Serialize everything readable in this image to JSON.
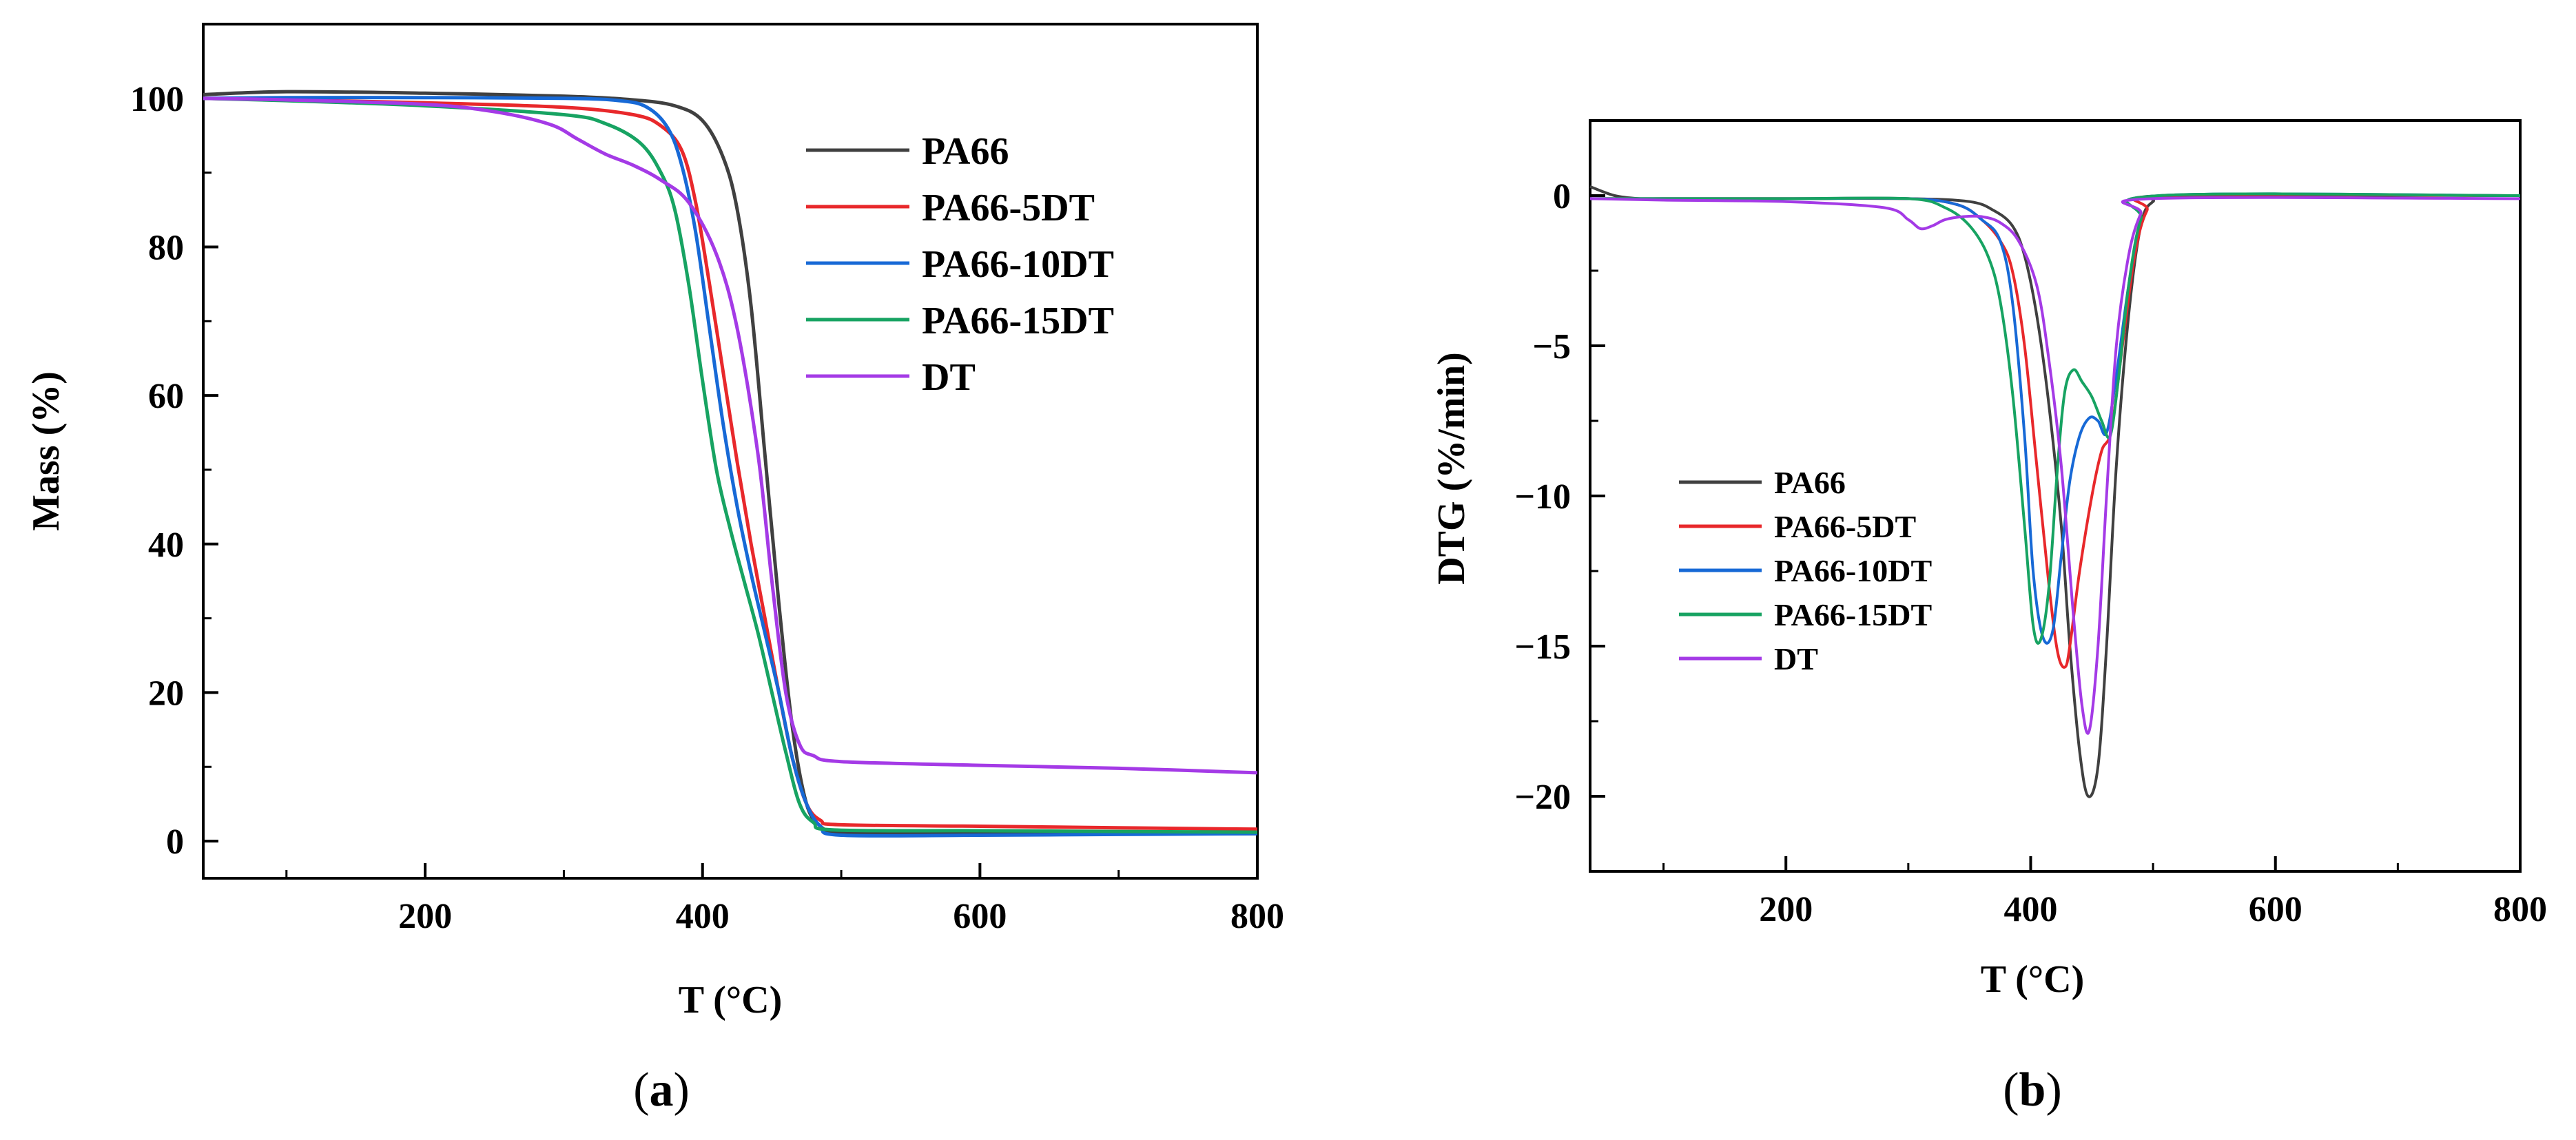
{
  "chart_data": [
    {
      "id": "a",
      "type": "line",
      "panel_label": {
        "open": "(",
        "letter": "a",
        "close": ")"
      },
      "xlabel": "T (°C)",
      "ylabel": "Mass (%)",
      "xlim": [
        40,
        800
      ],
      "ylim": [
        -5,
        110
      ],
      "xticks": [
        200,
        400,
        600,
        800
      ],
      "yticks": [
        0,
        20,
        40,
        60,
        80,
        100
      ],
      "legend_position": "top-right",
      "series": [
        {
          "name": "PA66",
          "color": "#404040",
          "x": [
            40,
            100,
            200,
            300,
            350,
            380,
            400,
            415,
            425,
            435,
            445,
            455,
            465,
            475,
            485,
            495,
            510,
            600,
            700,
            800
          ],
          "y": [
            100.5,
            100.9,
            100.7,
            100.3,
            99.8,
            99.0,
            97.0,
            92.0,
            85.0,
            72.0,
            52.0,
            32.0,
            15.0,
            5.0,
            2.0,
            1.2,
            1.0,
            1.0,
            1.0,
            1.0
          ]
        },
        {
          "name": "PA66-5DT",
          "color": "#e8282b",
          "x": [
            40,
            100,
            200,
            300,
            350,
            370,
            385,
            395,
            405,
            415,
            425,
            435,
            445,
            455,
            465,
            475,
            485,
            500,
            600,
            700,
            800
          ],
          "y": [
            100,
            99.8,
            99.4,
            98.8,
            97.8,
            96.3,
            93.0,
            86.0,
            75.0,
            63.0,
            51.0,
            40.0,
            30.0,
            20.0,
            11.0,
            5.0,
            2.8,
            2.2,
            2.0,
            1.8,
            1.6
          ]
        },
        {
          "name": "PA66-10DT",
          "color": "#1769d6",
          "x": [
            40,
            100,
            200,
            300,
            340,
            360,
            375,
            385,
            395,
            405,
            415,
            425,
            435,
            445,
            455,
            465,
            475,
            485,
            500,
            600,
            700,
            800
          ],
          "y": [
            100,
            100.1,
            100.1,
            100.0,
            99.7,
            98.8,
            96.0,
            91.0,
            82.0,
            69.0,
            56.0,
            45.0,
            36.0,
            28.0,
            20.0,
            11.0,
            5.0,
            2.0,
            0.8,
            0.8,
            0.9,
            1.0
          ]
        },
        {
          "name": "PA66-15DT",
          "color": "#17a362",
          "x": [
            40,
            100,
            200,
            300,
            330,
            355,
            370,
            380,
            390,
            400,
            410,
            420,
            430,
            440,
            450,
            460,
            470,
            480,
            495,
            600,
            700,
            800
          ],
          "y": [
            100,
            99.7,
            99.0,
            97.8,
            96.6,
            94.0,
            90.0,
            85.0,
            75.0,
            62.0,
            50.0,
            42.0,
            35.0,
            28.0,
            20.0,
            12.0,
            5.0,
            2.5,
            1.5,
            1.4,
            1.3,
            1.2
          ]
        },
        {
          "name": "DT",
          "color": "#a43ae6",
          "x": [
            40,
            100,
            200,
            250,
            290,
            310,
            330,
            350,
            370,
            390,
            410,
            425,
            440,
            450,
            460,
            470,
            480,
            500,
            600,
            700,
            800
          ],
          "y": [
            100,
            99.8,
            99.2,
            98.2,
            96.5,
            94.5,
            92.5,
            91.0,
            89.0,
            86.0,
            79.0,
            69.0,
            52.0,
            35.0,
            20.0,
            13.0,
            11.5,
            10.7,
            10.2,
            9.8,
            9.2
          ]
        }
      ]
    },
    {
      "id": "b",
      "type": "line",
      "panel_label": {
        "open": "(",
        "letter": "b",
        "close": ")"
      },
      "xlabel": "T (°C)",
      "ylabel": "DTG (%/min)",
      "xlim": [
        40,
        800
      ],
      "ylim": [
        -22.5,
        2.5
      ],
      "xticks": [
        200,
        400,
        600,
        800
      ],
      "yticks": [
        0,
        -5,
        -10,
        -15,
        -20
      ],
      "legend_position": "lower-left",
      "series": [
        {
          "name": "PA66",
          "color": "#404040",
          "x": [
            40,
            60,
            80,
            100,
            200,
            300,
            350,
            370,
            385,
            395,
            405,
            415,
            425,
            432,
            440,
            447,
            455,
            462,
            470,
            480,
            490,
            500,
            520,
            800
          ],
          "y": [
            0.3,
            0.0,
            -0.1,
            -0.1,
            -0.1,
            -0.1,
            -0.2,
            -0.5,
            -1.0,
            -2.0,
            -4.0,
            -7.0,
            -11.0,
            -15.0,
            -18.5,
            -20.0,
            -19.0,
            -15.0,
            -9.0,
            -4.0,
            -1.0,
            -0.2,
            0.0,
            0.0
          ]
        },
        {
          "name": "PA66-5DT",
          "color": "#e8282b",
          "x": [
            40,
            100,
            200,
            300,
            340,
            360,
            375,
            385,
            395,
            405,
            415,
            422,
            428,
            432,
            440,
            450,
            458,
            466,
            475,
            485,
            495,
            510,
            800
          ],
          "y": [
            -0.1,
            -0.1,
            -0.1,
            -0.1,
            -0.3,
            -0.8,
            -1.5,
            -2.5,
            -5.0,
            -9.0,
            -13.0,
            -15.2,
            -15.7,
            -15.0,
            -12.5,
            -10.0,
            -8.5,
            -7.8,
            -5.0,
            -2.0,
            -0.5,
            0.0,
            0.0
          ]
        },
        {
          "name": "PA66-10DT",
          "color": "#1769d6",
          "x": [
            40,
            100,
            200,
            300,
            340,
            360,
            375,
            385,
            395,
            402,
            410,
            418,
            425,
            432,
            440,
            448,
            455,
            462,
            470,
            480,
            490,
            505,
            800
          ],
          "y": [
            -0.1,
            -0.1,
            -0.1,
            -0.1,
            -0.3,
            -0.8,
            -1.5,
            -3.5,
            -8.0,
            -12.5,
            -14.7,
            -14.5,
            -12.0,
            -9.5,
            -8.0,
            -7.4,
            -7.5,
            -7.9,
            -6.0,
            -3.0,
            -0.8,
            0.0,
            0.0
          ]
        },
        {
          "name": "PA66-15DT",
          "color": "#17a362",
          "x": [
            40,
            100,
            200,
            300,
            330,
            350,
            365,
            375,
            385,
            395,
            402,
            408,
            415,
            422,
            428,
            435,
            442,
            450,
            458,
            465,
            472,
            480,
            490,
            505,
            800
          ],
          "y": [
            -0.1,
            -0.1,
            -0.1,
            -0.1,
            -0.4,
            -1.0,
            -2.0,
            -3.5,
            -6.5,
            -11.0,
            -14.3,
            -14.8,
            -13.0,
            -9.0,
            -6.5,
            -5.8,
            -6.2,
            -6.7,
            -7.5,
            -8.0,
            -6.0,
            -3.0,
            -0.8,
            0.0,
            0.0
          ]
        },
        {
          "name": "DT",
          "color": "#a43ae6",
          "x": [
            40,
            100,
            200,
            280,
            300,
            310,
            320,
            330,
            345,
            360,
            375,
            390,
            405,
            415,
            425,
            435,
            442,
            448,
            455,
            462,
            470,
            480,
            490,
            500,
            800
          ],
          "y": [
            -0.1,
            -0.15,
            -0.2,
            -0.4,
            -0.8,
            -1.1,
            -1.0,
            -0.8,
            -0.7,
            -0.7,
            -0.9,
            -1.5,
            -3.0,
            -5.5,
            -9.0,
            -14.0,
            -17.0,
            -17.8,
            -15.0,
            -10.0,
            -5.0,
            -2.0,
            -0.6,
            -0.1,
            -0.1
          ]
        }
      ]
    }
  ]
}
